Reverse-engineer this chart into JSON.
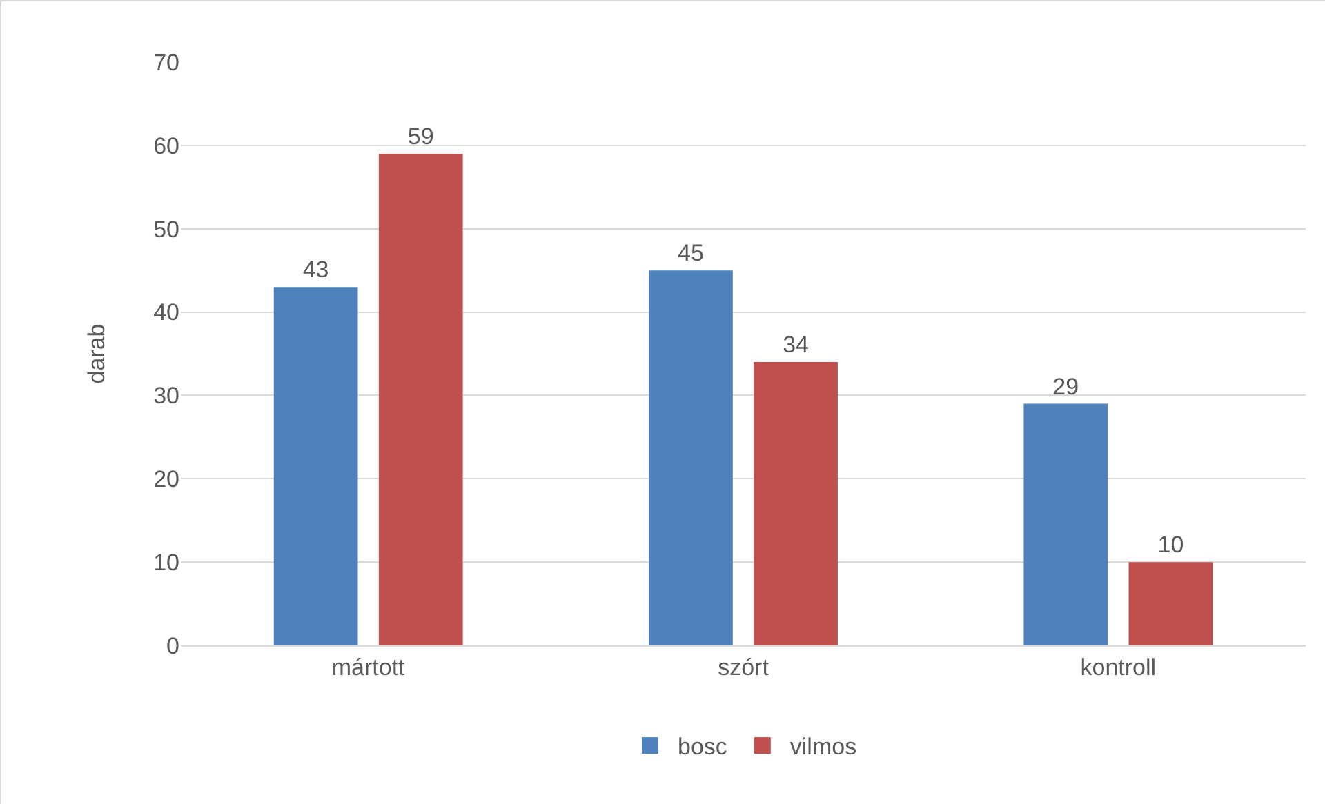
{
  "chart_data": {
    "type": "bar",
    "ylabel": "darab",
    "categories": [
      "mártott",
      "szórt",
      "kontroll"
    ],
    "series": [
      {
        "name": "bosc",
        "color": "#4f81bd",
        "values": [
          43,
          45,
          29
        ]
      },
      {
        "name": "vilmos",
        "color": "#c0504d",
        "values": [
          59,
          34,
          10
        ]
      }
    ],
    "ylim": [
      0,
      70
    ],
    "yticks": [
      0,
      10,
      20,
      30,
      40,
      50,
      60,
      70
    ],
    "grid": "y",
    "legend": "bottom",
    "data_labels": true
  }
}
